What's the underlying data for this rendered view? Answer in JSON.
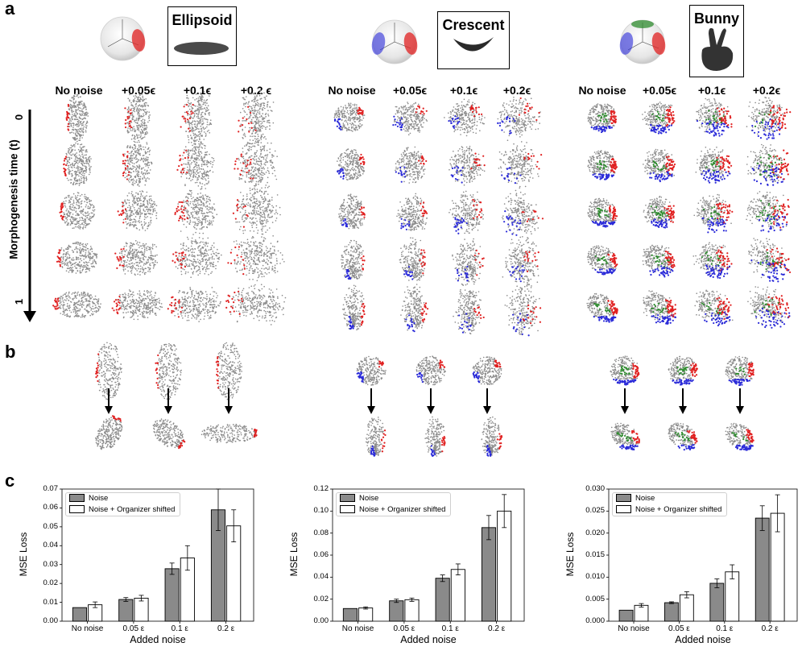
{
  "panel_labels": {
    "a": "a",
    "b": "b",
    "c": "c"
  },
  "shapes": [
    {
      "name": "Ellipsoid",
      "organizers": [
        "red"
      ]
    },
    {
      "name": "Crescent",
      "organizers": [
        "red",
        "blue"
      ]
    },
    {
      "name": "Bunny",
      "organizers": [
        "red",
        "blue",
        "green"
      ]
    }
  ],
  "noise_headers": [
    [
      "No noise",
      "+0.05ϵ",
      "+0.1ϵ",
      "+0.2 ϵ"
    ],
    [
      "No noise",
      "+0.05ϵ",
      "+0.1ϵ",
      "+0.2ϵ"
    ],
    [
      "No noise",
      "+0.05ϵ",
      "+0.1ϵ",
      "+0.2ϵ"
    ]
  ],
  "time_axis": {
    "label": "Morphogenesis time (t)",
    "start": "0",
    "end": "1"
  },
  "colors": {
    "red": "#e02020",
    "blue": "#2a2ad8",
    "green": "#2e8b2e",
    "points": "#8c8c8c",
    "bar_noise": "#8a8a8a",
    "bar_shifted": "#ffffff"
  },
  "chart_data": [
    {
      "type": "bar",
      "categories": [
        "No noise",
        "0.05 ε",
        "0.1 ε",
        "0.2 ε"
      ],
      "series": [
        {
          "name": "Noise",
          "values": [
            0.0072,
            0.0115,
            0.0278,
            0.059
          ],
          "errors": [
            0,
            0.001,
            0.003,
            0.011
          ]
        },
        {
          "name": "Noise + Organizer shifted",
          "values": [
            0.0087,
            0.0122,
            0.0335,
            0.0505
          ],
          "errors": [
            0.0015,
            0.0015,
            0.0065,
            0.0085
          ]
        }
      ],
      "xlabel": "Added noise",
      "ylabel": "MSE Loss",
      "ylim": [
        0,
        0.07
      ],
      "yticks": [
        "0.00",
        "0.01",
        "0.02",
        "0.03",
        "0.04",
        "0.05",
        "0.06",
        "0.07"
      ],
      "legend": "top-left"
    },
    {
      "type": "bar",
      "categories": [
        "No noise",
        "0.05 ε",
        "0.1 ε",
        "0.2 ε"
      ],
      "series": [
        {
          "name": "Noise",
          "values": [
            0.0115,
            0.0185,
            0.039,
            0.085
          ],
          "errors": [
            0,
            0.0015,
            0.003,
            0.011
          ]
        },
        {
          "name": "Noise + Organizer shifted",
          "values": [
            0.012,
            0.0195,
            0.047,
            0.1
          ],
          "errors": [
            0.001,
            0.0015,
            0.005,
            0.015
          ]
        }
      ],
      "xlabel": "Added noise",
      "ylabel": "MSE Loss",
      "ylim": [
        0,
        0.12
      ],
      "yticks": [
        "0.00",
        "0.02",
        "0.04",
        "0.06",
        "0.08",
        "0.10",
        "0.12"
      ],
      "legend": "top-left"
    },
    {
      "type": "bar",
      "categories": [
        "No noise",
        "0.05 ε",
        "0.1 ε",
        "0.2 ε"
      ],
      "series": [
        {
          "name": "Noise",
          "values": [
            0.0025,
            0.0042,
            0.0086,
            0.0234
          ],
          "errors": [
            0,
            0.0002,
            0.001,
            0.0028
          ]
        },
        {
          "name": "Noise + Organizer shifted",
          "values": [
            0.0036,
            0.006,
            0.0112,
            0.0245
          ],
          "errors": [
            0.0004,
            0.0007,
            0.0016,
            0.0042
          ]
        }
      ],
      "xlabel": "Added noise",
      "ylabel": "MSE Loss",
      "ylim": [
        0,
        0.03
      ],
      "yticks": [
        "0.000",
        "0.005",
        "0.010",
        "0.015",
        "0.020",
        "0.025",
        "0.030"
      ],
      "legend": "top-left"
    }
  ]
}
